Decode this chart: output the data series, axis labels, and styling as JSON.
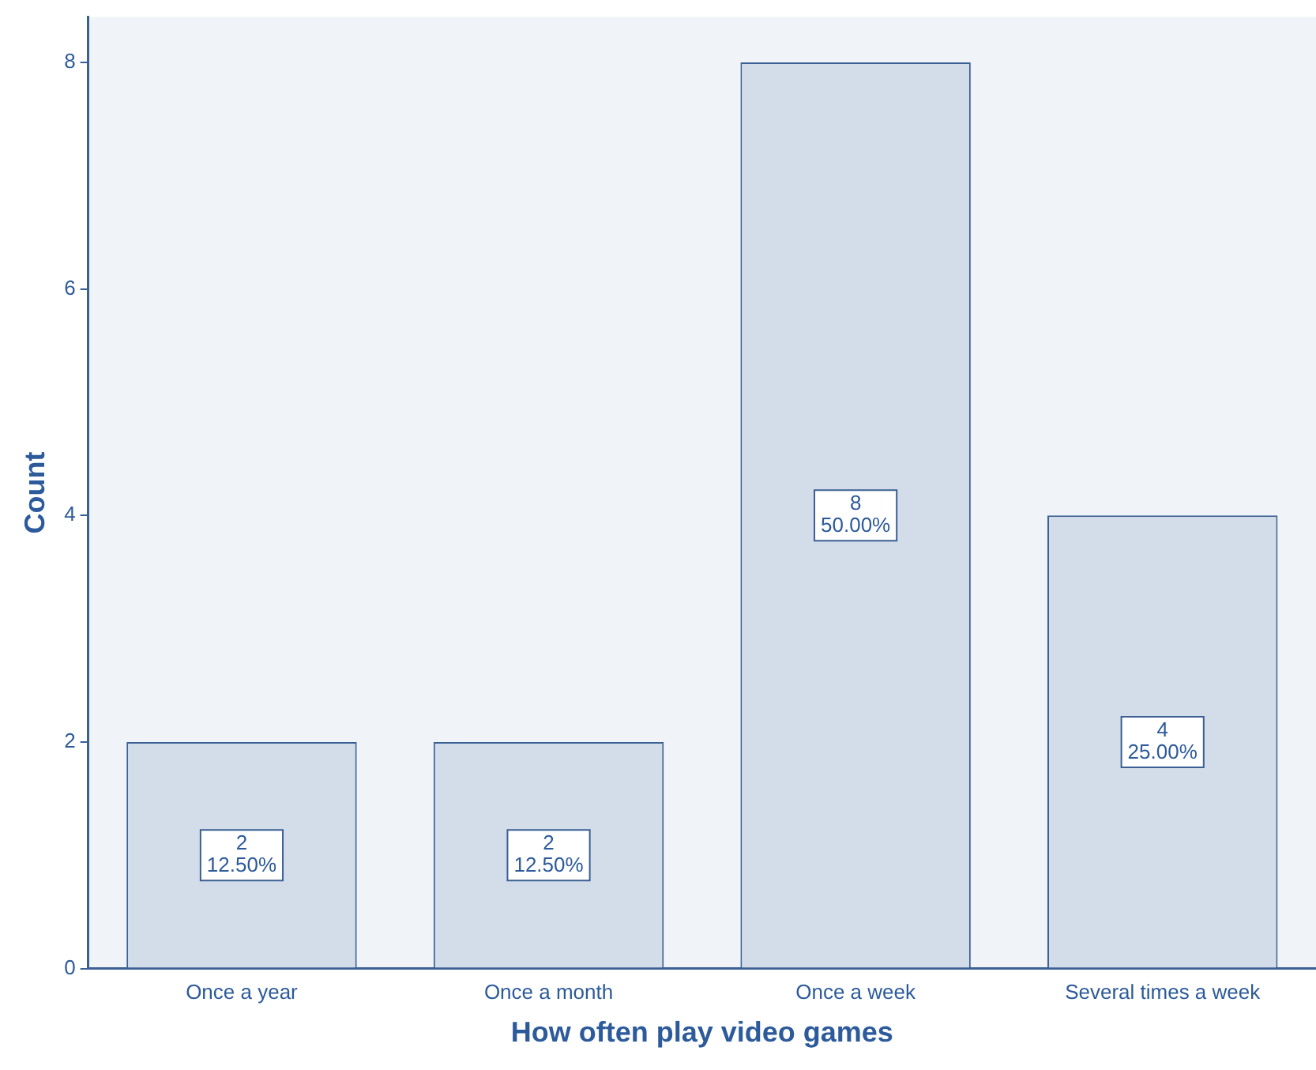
{
  "chart_data": {
    "type": "bar",
    "xlabel": "How often play video games",
    "ylabel": "Count",
    "categories": [
      "Once a year",
      "Once a month",
      "Once a week",
      "Several times a week"
    ],
    "values": [
      2,
      2,
      8,
      4
    ],
    "color": "#d3dde9",
    "value_labels": [
      "2\n12.50%",
      "2\n12.50%",
      "8\n50.00%",
      "4\n25.00%"
    ],
    "ylim": [
      0,
      8.4
    ],
    "yticks": [
      0,
      2,
      4,
      6,
      8
    ],
    "grid": false,
    "legend": false
  }
}
